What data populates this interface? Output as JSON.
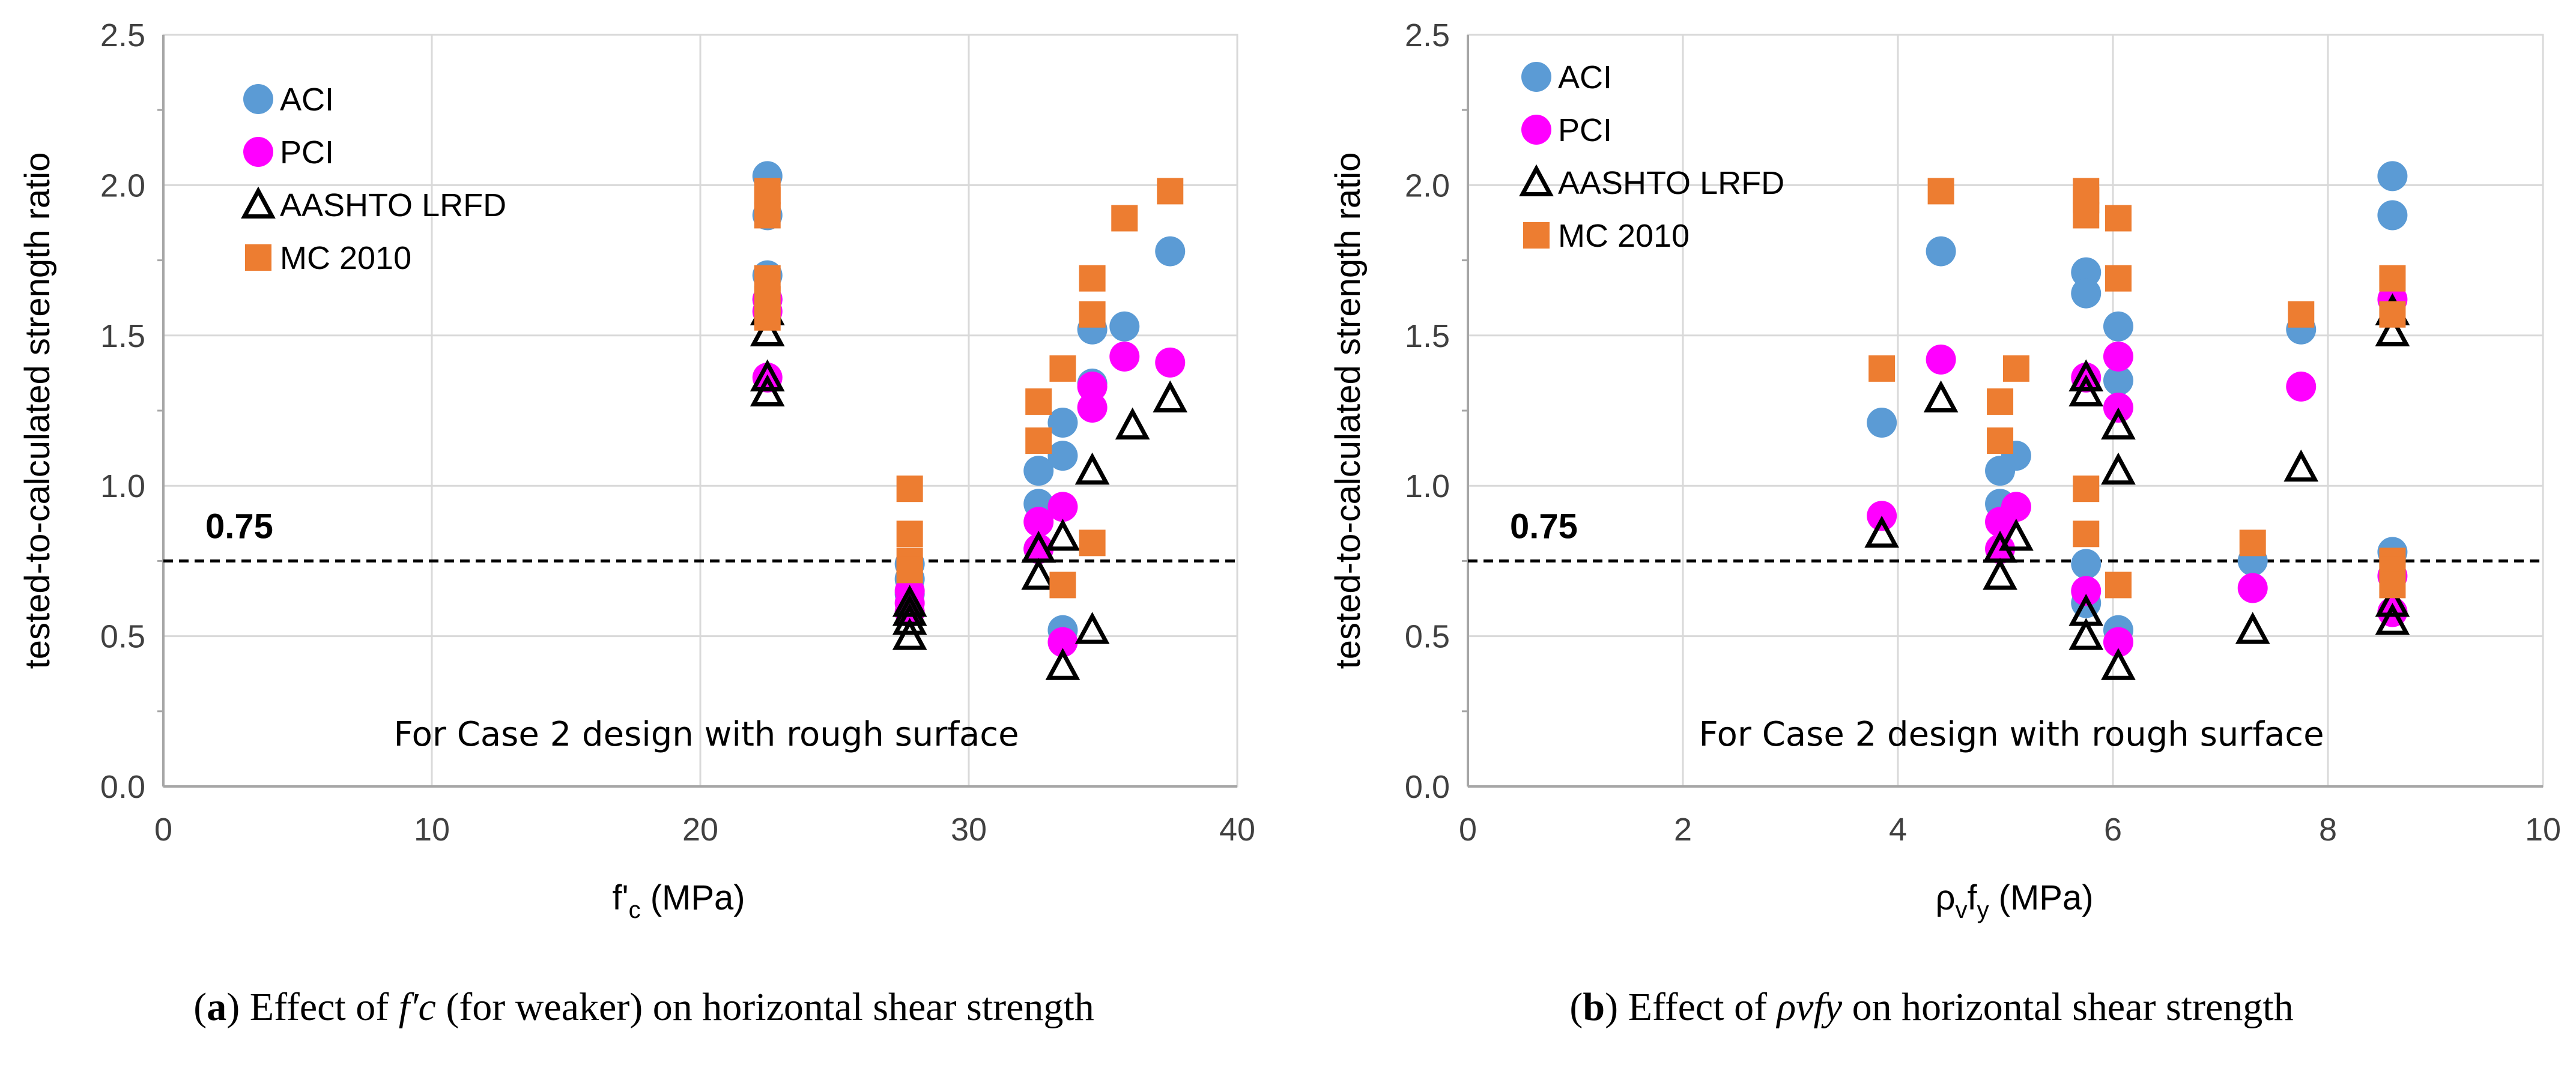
{
  "chart_data": [
    {
      "type": "scatter",
      "panel": "a",
      "title": "",
      "xlabel": "f'c (MPa)",
      "xlabel_main": "f'",
      "xlabel_sub": "c",
      "xlabel_unit": " (MPa)",
      "ylabel": "tested-to-calculated strength ratio",
      "xlim": [
        0,
        40
      ],
      "ylim": [
        0,
        2.5
      ],
      "xticks": [
        0,
        10,
        20,
        30,
        40
      ],
      "xtick_labels": [
        "0",
        "10",
        "20",
        "30",
        "40"
      ],
      "yticks": [
        0,
        0.5,
        1.0,
        1.5,
        2.0,
        2.5
      ],
      "ytick_labels": [
        "0.0",
        "0.5",
        "1.0",
        "1.5",
        "2.0",
        "2.5"
      ],
      "grid": true,
      "legend_position": "top-left",
      "reference_line": {
        "y": 0.75,
        "label": "0.75",
        "style": "dashed"
      },
      "annotation": "For Case 2 design with rough surface",
      "series": [
        {
          "name": "ACI",
          "marker": "circle",
          "color": "#5b9bd5",
          "x": [
            22.5,
            22.5,
            22.5,
            22.5,
            27.8,
            27.8,
            27.8,
            32.6,
            32.6,
            32.6,
            33.5,
            33.5,
            33.5,
            34.6,
            34.6,
            35.8,
            37.5
          ],
          "y": [
            2.03,
            1.9,
            1.7,
            1.62,
            0.74,
            0.69,
            0.64,
            1.05,
            0.94,
            0.79,
            1.21,
            1.1,
            0.52,
            1.52,
            1.34,
            1.53,
            1.78
          ]
        },
        {
          "name": "PCI",
          "marker": "circle",
          "color": "#ff00ff",
          "x": [
            22.5,
            22.5,
            22.5,
            27.8,
            27.8,
            27.8,
            32.6,
            32.6,
            33.5,
            33.5,
            34.6,
            34.6,
            35.8,
            37.5
          ],
          "y": [
            1.62,
            1.58,
            1.36,
            0.65,
            0.61,
            0.58,
            0.88,
            0.79,
            0.93,
            0.48,
            1.33,
            1.26,
            1.43,
            1.41
          ],
          "y_extra": [
            0.66
          ]
        },
        {
          "name": "AASHTO LRFD",
          "marker": "triangle-open",
          "color": "#000000",
          "x": [
            22.5,
            22.5,
            22.5,
            22.5,
            27.8,
            27.8,
            27.8,
            27.8,
            32.6,
            32.6,
            33.5,
            33.5,
            34.6,
            34.6,
            36.1,
            37.5
          ],
          "y": [
            1.58,
            1.51,
            1.36,
            1.31,
            0.61,
            0.58,
            0.55,
            0.5,
            0.79,
            0.7,
            0.83,
            0.4,
            1.05,
            0.52,
            1.2,
            1.29
          ]
        },
        {
          "name": "MC 2010",
          "marker": "square",
          "color": "#ed7d31",
          "x": [
            22.5,
            22.5,
            22.5,
            22.5,
            22.5,
            22.5,
            27.8,
            27.8,
            27.8,
            27.8,
            32.6,
            32.6,
            33.5,
            33.5,
            34.6,
            34.6,
            34.6,
            35.8,
            37.5
          ],
          "y": [
            1.98,
            1.95,
            1.9,
            1.69,
            1.62,
            1.56,
            0.99,
            0.84,
            0.75,
            0.72,
            1.28,
            1.15,
            1.39,
            0.67,
            1.69,
            1.57,
            0.81,
            1.89,
            1.98
          ]
        }
      ]
    },
    {
      "type": "scatter",
      "panel": "b",
      "title": "",
      "xlabel": "ρvfy (MPa)",
      "xlabel_main": "ρ",
      "xlabel_sub": "v",
      "xlabel_main2": "f",
      "xlabel_sub2": "y",
      "xlabel_unit": " (MPa)",
      "ylabel": "tested-to-calculated strength ratio",
      "xlim": [
        0,
        10
      ],
      "ylim": [
        0,
        2.5
      ],
      "xticks": [
        0,
        2,
        4,
        6,
        8,
        10
      ],
      "xtick_labels": [
        "0",
        "2",
        "4",
        "6",
        "8",
        "10"
      ],
      "yticks": [
        0,
        0.5,
        1.0,
        1.5,
        2.0,
        2.5
      ],
      "ytick_labels": [
        "0.0",
        "0.5",
        "1.0",
        "1.5",
        "2.0",
        "2.5"
      ],
      "grid": true,
      "legend_position": "top-left",
      "reference_line": {
        "y": 0.75,
        "label": "0.75",
        "style": "dashed"
      },
      "annotation": "For Case 2 design with rough surface",
      "series": [
        {
          "name": "ACI",
          "marker": "circle",
          "color": "#5b9bd5",
          "x": [
            3.85,
            4.4,
            4.95,
            4.95,
            5.1,
            5.75,
            5.75,
            5.75,
            5.75,
            6.05,
            6.05,
            6.05,
            7.3,
            7.75,
            8.6,
            8.6,
            8.6
          ],
          "y": [
            1.21,
            1.78,
            1.05,
            0.94,
            1.1,
            1.71,
            1.64,
            0.74,
            0.61,
            1.53,
            1.35,
            0.52,
            0.75,
            1.52,
            2.03,
            1.9,
            0.78
          ]
        },
        {
          "name": "PCI",
          "marker": "circle",
          "color": "#ff00ff",
          "x": [
            3.85,
            4.4,
            4.95,
            4.95,
            5.1,
            5.75,
            5.75,
            6.05,
            6.05,
            6.05,
            7.3,
            7.75,
            8.6,
            8.6,
            8.6
          ],
          "y": [
            0.9,
            1.42,
            0.88,
            0.79,
            0.93,
            1.36,
            0.65,
            1.43,
            1.26,
            0.48,
            0.66,
            1.33,
            1.62,
            0.7,
            0.58
          ]
        },
        {
          "name": "AASHTO LRFD",
          "marker": "triangle-open",
          "color": "#000000",
          "x": [
            3.85,
            4.4,
            4.95,
            4.95,
            5.1,
            5.75,
            5.75,
            5.75,
            5.75,
            6.05,
            6.05,
            6.05,
            7.3,
            7.75,
            8.6,
            8.6,
            8.6,
            8.6
          ],
          "y": [
            0.84,
            1.29,
            0.79,
            0.7,
            0.83,
            1.36,
            1.31,
            0.58,
            0.5,
            1.2,
            1.05,
            0.4,
            0.52,
            1.06,
            1.58,
            1.51,
            0.61,
            0.55
          ]
        },
        {
          "name": "MC 2010",
          "marker": "square",
          "color": "#ed7d31",
          "x": [
            3.85,
            4.4,
            4.95,
            4.95,
            5.1,
            5.75,
            5.75,
            5.75,
            5.75,
            5.75,
            6.05,
            6.05,
            6.05,
            7.3,
            7.75,
            8.6,
            8.6,
            8.6,
            8.6,
            8.6
          ],
          "y": [
            1.39,
            1.98,
            1.28,
            1.15,
            1.39,
            1.98,
            1.95,
            1.9,
            0.99,
            0.84,
            1.89,
            1.69,
            0.67,
            0.81,
            1.57,
            1.69,
            1.57,
            0.75,
            0.72,
            0.67
          ]
        }
      ]
    }
  ],
  "captions": {
    "a": {
      "label": "a",
      "text_before": " Effect of ",
      "symbol": "f′c",
      "text_after": " (for weaker) on horizontal shear strength"
    },
    "b": {
      "label": "b",
      "text_before": " Effect of ",
      "symbol": "ρvfy",
      "text_after": " on horizontal shear strength"
    }
  }
}
